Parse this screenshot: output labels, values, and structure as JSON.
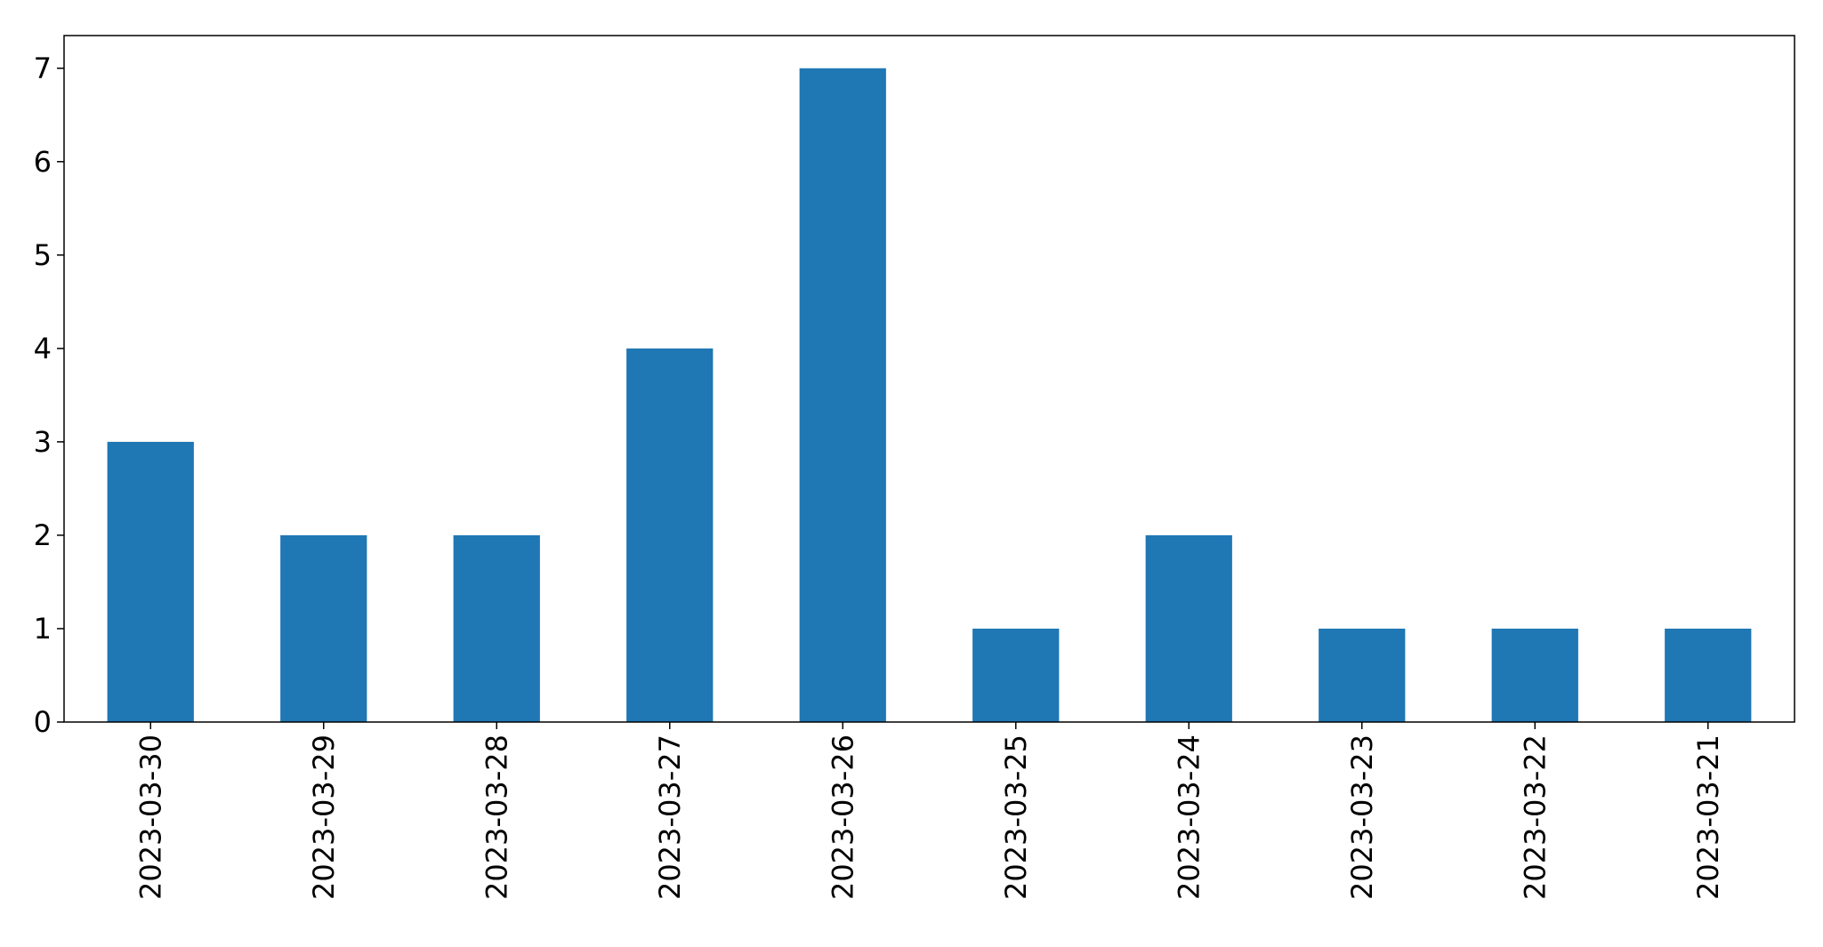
{
  "chart_data": {
    "type": "bar",
    "title": "",
    "xlabel": "",
    "ylabel": "",
    "categories": [
      "2023-03-30",
      "2023-03-29",
      "2023-03-28",
      "2023-03-27",
      "2023-03-26",
      "2023-03-25",
      "2023-03-24",
      "2023-03-23",
      "2023-03-22",
      "2023-03-21"
    ],
    "values": [
      3,
      2,
      2,
      4,
      7,
      1,
      2,
      1,
      1,
      1
    ],
    "ylim": [
      0,
      7.35
    ],
    "yticks": [
      0,
      1,
      2,
      3,
      4,
      5,
      6,
      7
    ],
    "ytick_labels": [
      "0",
      "1",
      "2",
      "3",
      "4",
      "5",
      "6",
      "7"
    ],
    "bar_color": "#1f77b4",
    "grid": false,
    "legend": "none"
  }
}
